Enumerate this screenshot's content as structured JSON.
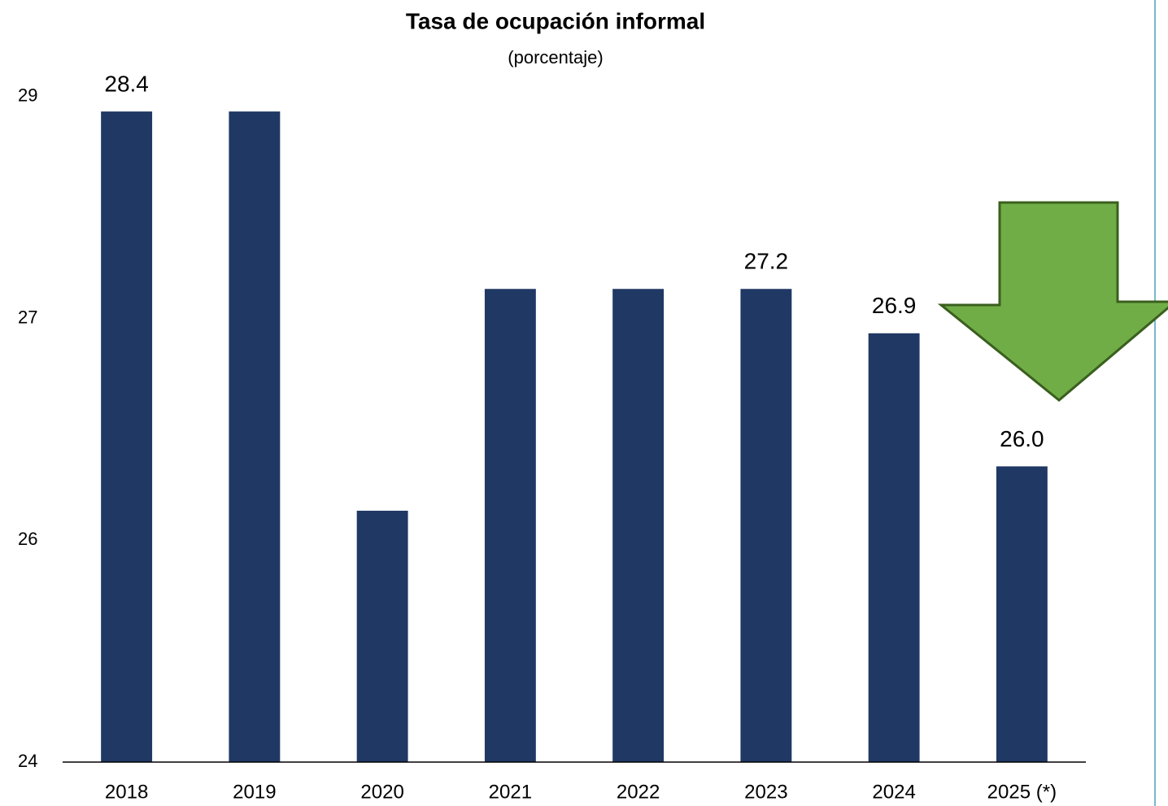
{
  "chart_data": {
    "type": "bar",
    "title": "Tasa de ocupación informal",
    "subtitle": "(porcentaje)",
    "categories": [
      "2018",
      "2019",
      "2020",
      "2021",
      "2022",
      "2023",
      "2024",
      "2025 (*)"
    ],
    "values": [
      28.4,
      28.4,
      25.7,
      27.2,
      27.2,
      27.2,
      26.9,
      26.0
    ],
    "value_labels": [
      "28.4",
      null,
      null,
      null,
      null,
      "27.2",
      "26.9",
      "26.0"
    ],
    "color": "#203864",
    "ylim": [
      24,
      29
    ],
    "yticks": [
      {
        "value": 24,
        "label": "24"
      },
      {
        "value": 25.5,
        "label": "26"
      },
      {
        "value": 27,
        "label": "27"
      },
      {
        "value": 28.5,
        "label": "29"
      }
    ],
    "grid": false
  }
}
